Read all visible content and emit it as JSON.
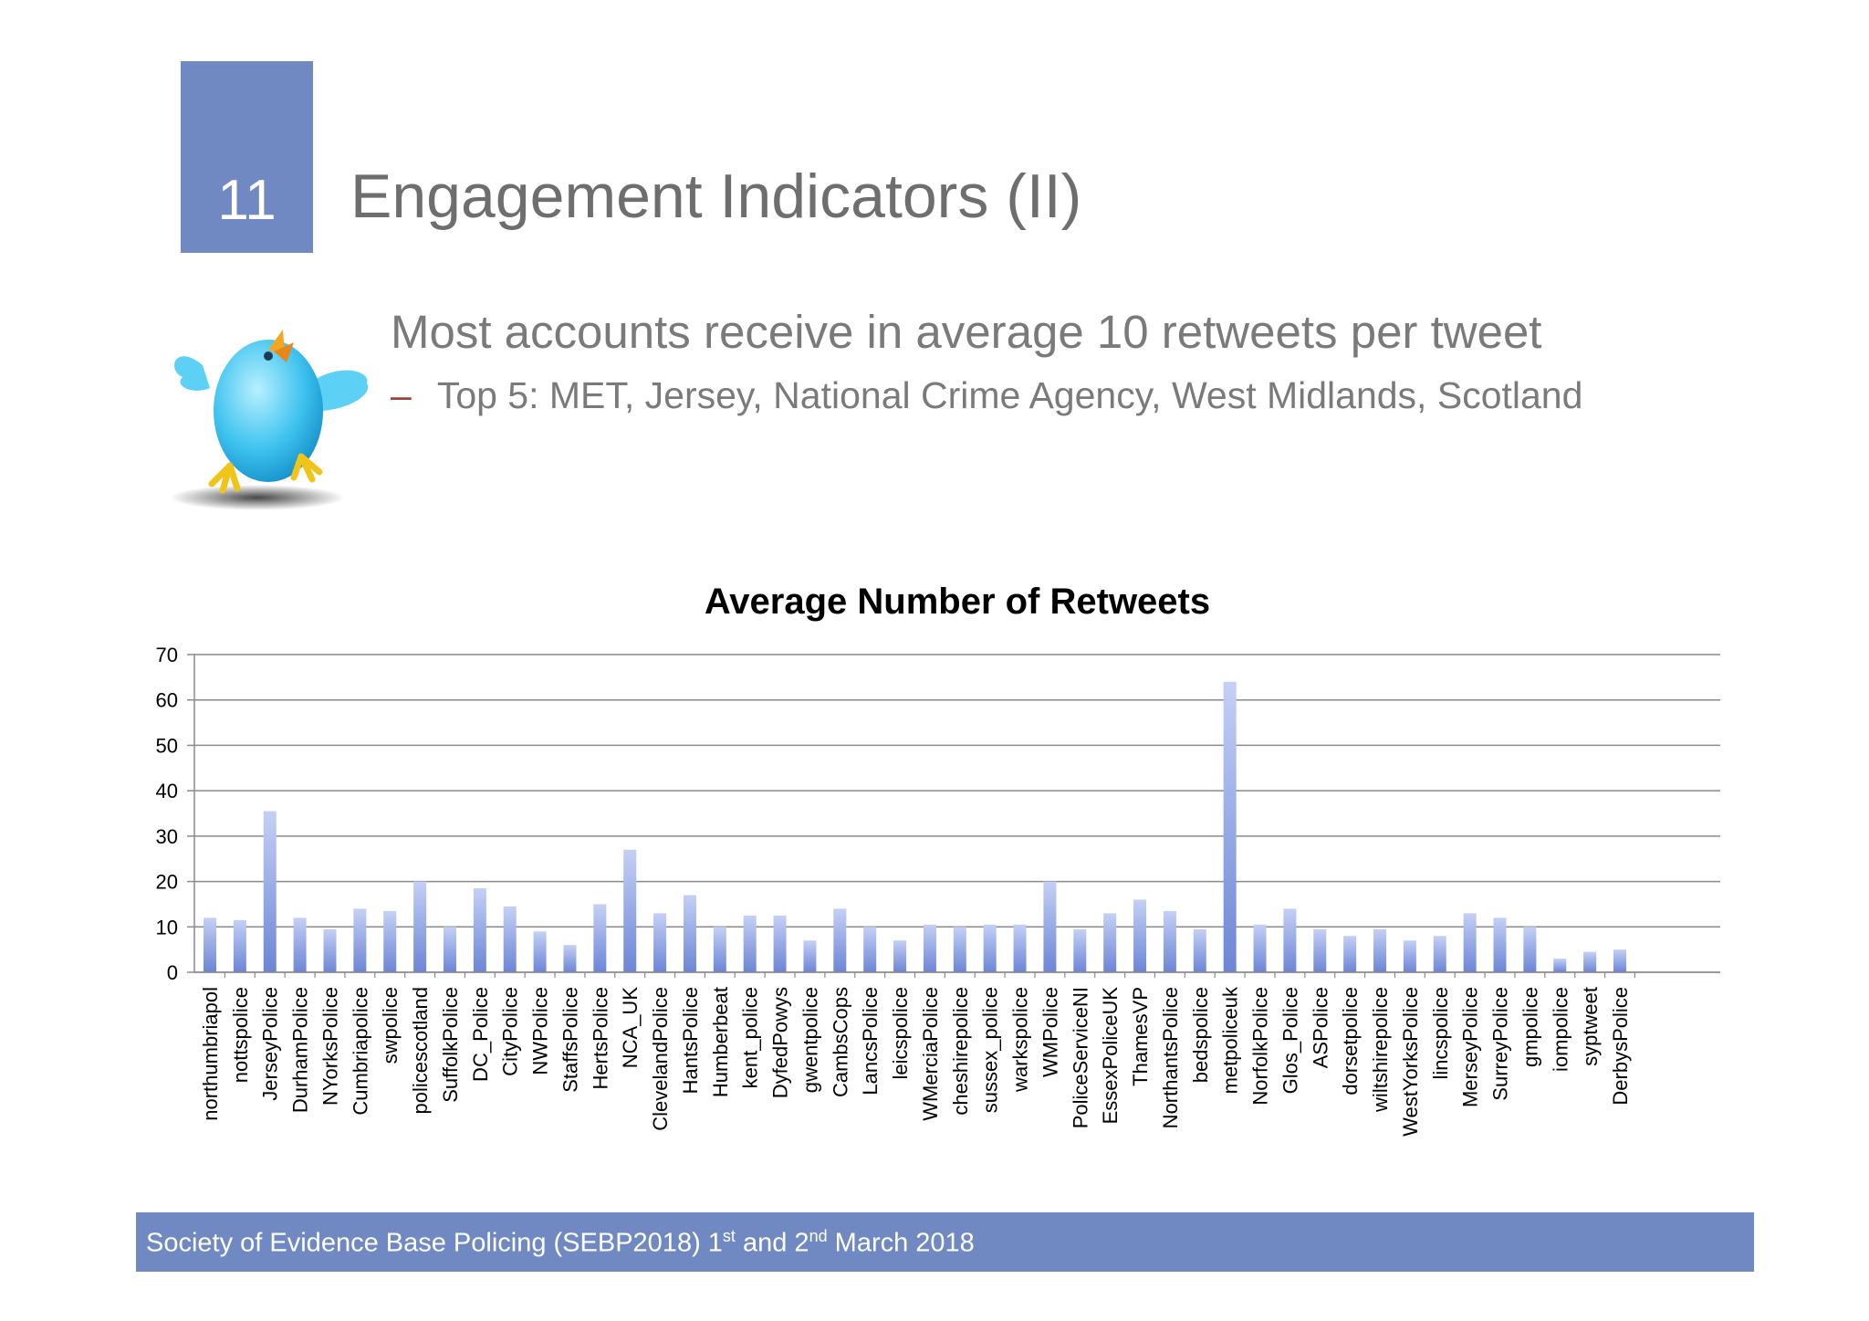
{
  "slide": {
    "number": "11",
    "title": "Engagement Indicators (II)",
    "bullet_main": "Most accounts receive in average 10 retweets per tweet",
    "bullet_dash": "–",
    "bullet_sub": "Top 5: MET, Jersey, National Crime Agency, West Midlands, Scotland"
  },
  "footer": {
    "text_a": "Society of Evidence Base Policing (SEBP2018) 1",
    "sup_a": "st",
    "text_b": " and 2",
    "sup_b": "nd",
    "text_c": " March 2018"
  },
  "colors": {
    "accent": "#7189c2",
    "bar_top": "#c4d0f5",
    "bar_bottom": "#6c85d6",
    "grid": "#8a8a8a"
  },
  "icons": [
    "twitter-bird-icon"
  ],
  "chart_data": {
    "type": "bar",
    "title": "Average Number of Retweets",
    "xlabel": "",
    "ylabel": "",
    "ylim": [
      0,
      70
    ],
    "yticks": [
      0,
      10,
      20,
      30,
      40,
      50,
      60,
      70
    ],
    "grid": true,
    "legend": "none",
    "categories": [
      "northumbriapol",
      "nottspolice",
      "JerseyPolice",
      "DurhamPolice",
      "NYorksPolice",
      "Cumbriapolice",
      "swpolice",
      "policescotland",
      "SuffolkPolice",
      "DC_Police",
      "CityPolice",
      "NWPolice",
      "StaffsPolice",
      "HertsPolice",
      "NCA_UK",
      "ClevelandPolice",
      "HantsPolice",
      "Humberbeat",
      "kent_police",
      "DyfedPowys",
      "gwentpolice",
      "CambsCops",
      "LancsPolice",
      "leicspolice",
      "WMerciaPolice",
      "cheshirepolice",
      "sussex_police",
      "warkspolice",
      "WMPolice",
      "PoliceServiceNI",
      "EssexPoliceUK",
      "ThamesVP",
      "NorthantsPolice",
      "bedspolice",
      "metpoliceuk",
      "NorfolkPolice",
      "Glos_Police",
      "ASPolice",
      "dorsetpolice",
      "wiltshirepolice",
      "WestYorksPolice",
      "lincspolice",
      "MerseyPolice",
      "SurreyPolice",
      "gmpolice",
      "iompolice",
      "syptweet",
      "DerbysPolice"
    ],
    "values": [
      12,
      11.5,
      35.5,
      12,
      9.5,
      14,
      13.5,
      20,
      10,
      18.5,
      14.5,
      9,
      6,
      15,
      27,
      13,
      17,
      10,
      12.5,
      12.5,
      7,
      14,
      10,
      7,
      10.5,
      10,
      10.5,
      10.5,
      20,
      9.5,
      13,
      16,
      13.5,
      9.5,
      64,
      10.5,
      14,
      9.5,
      8,
      9.5,
      7,
      8,
      13,
      12,
      10,
      3,
      4.5,
      5
    ]
  }
}
